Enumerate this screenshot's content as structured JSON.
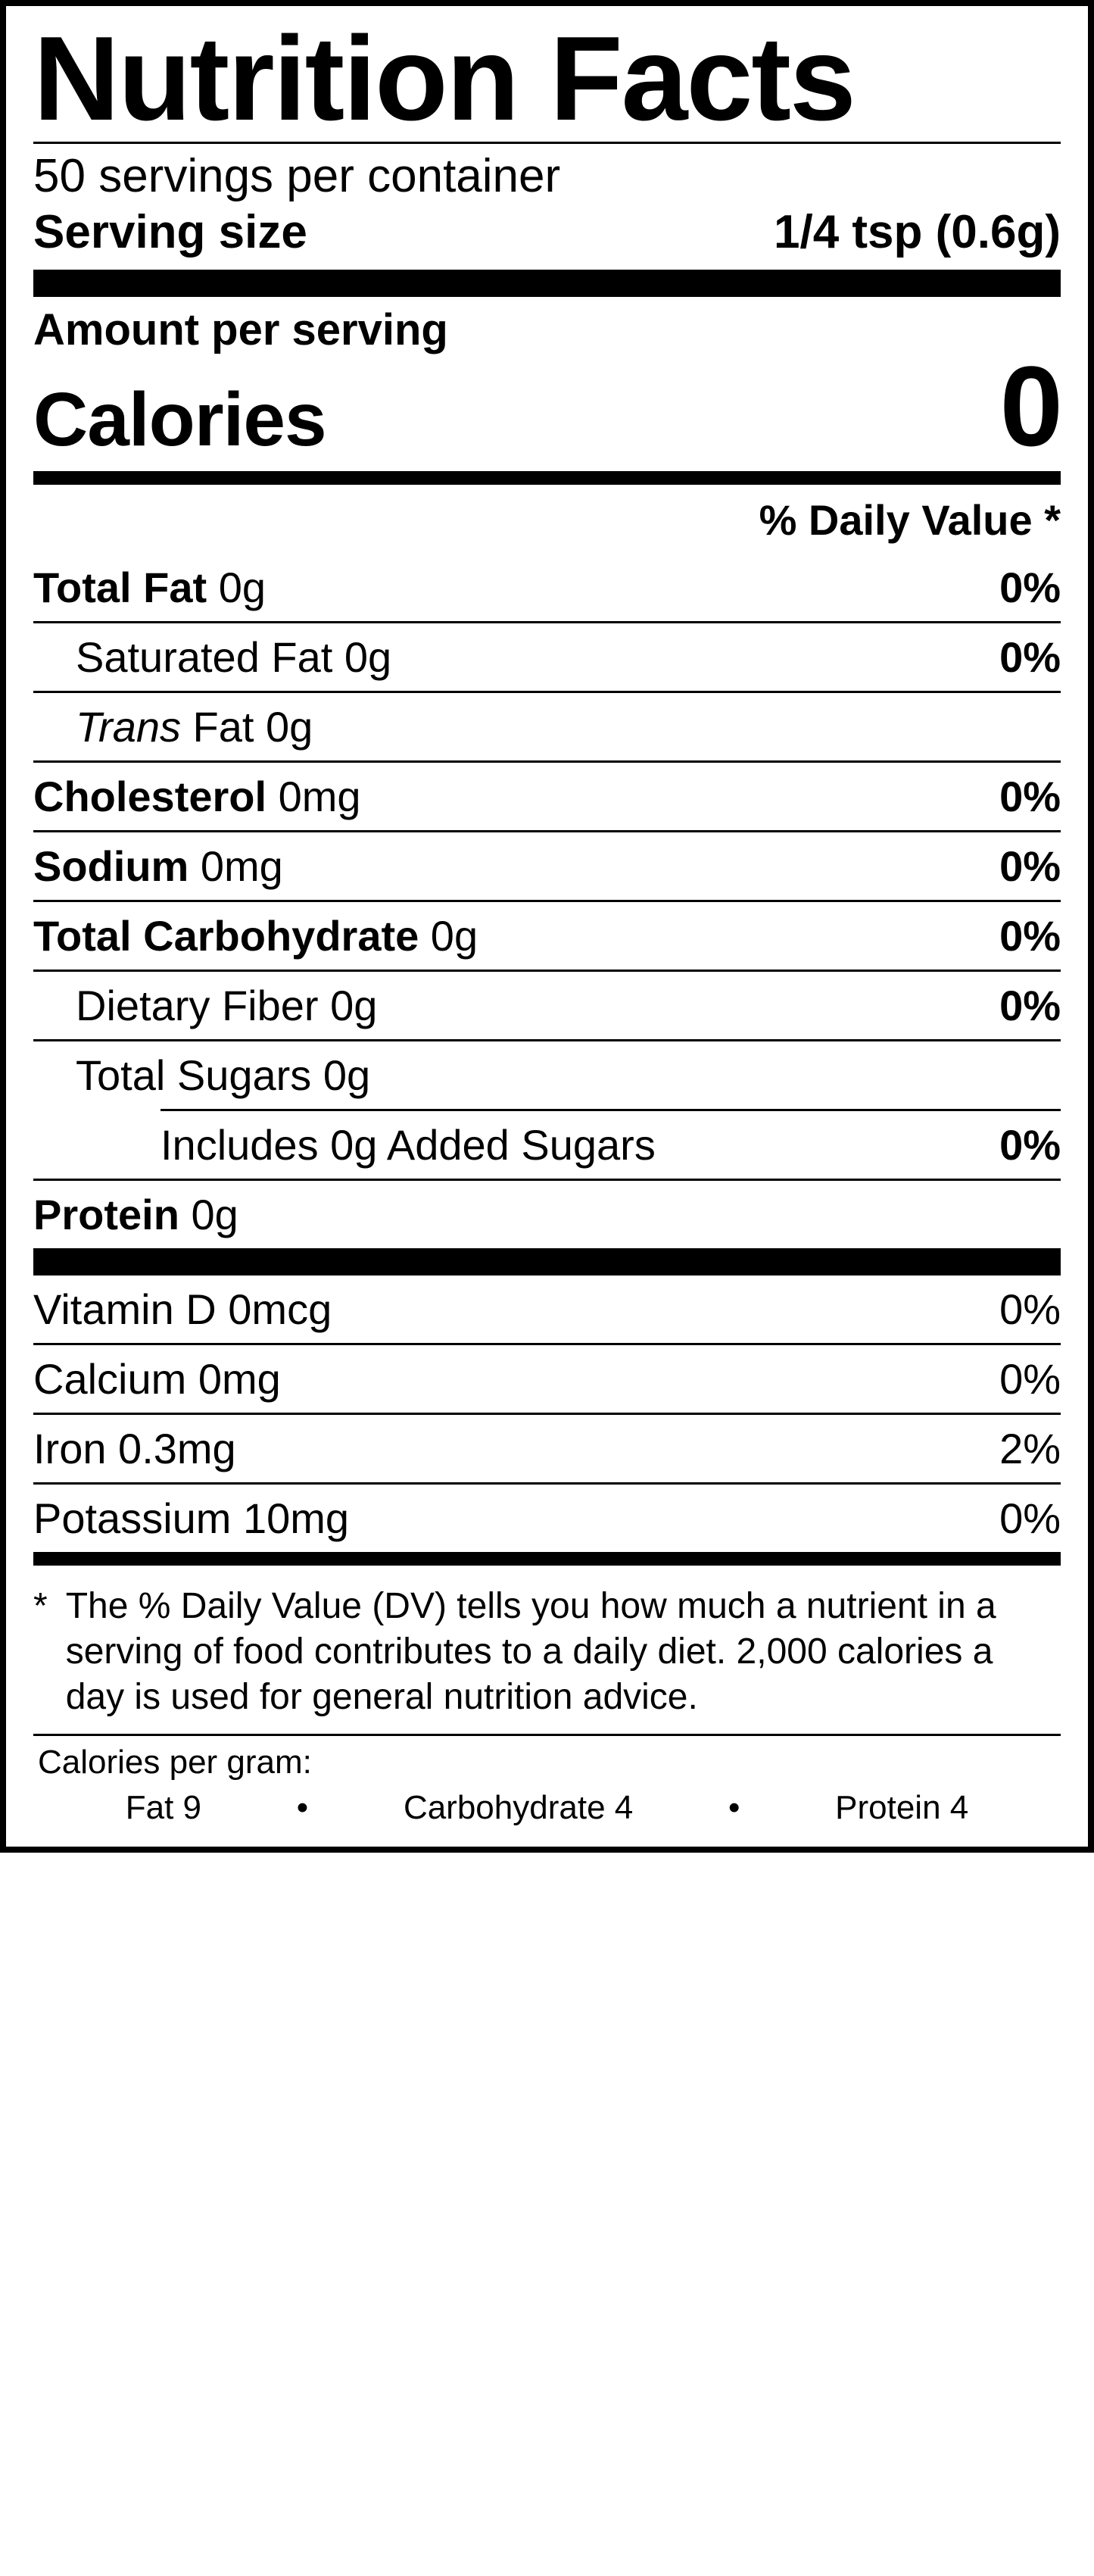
{
  "colors": {
    "fg": "#000000",
    "bg": "#ffffff"
  },
  "fonts": {
    "body_family": "Helvetica",
    "title_pt": 158,
    "body_pt": 56
  },
  "header": {
    "title": "Nutrition Facts",
    "servings_per_container": "50 servings per container",
    "serving_size_label": "Serving size",
    "serving_size_value": "1/4 tsp (0.6g)"
  },
  "amount_per_serving_label": "Amount per serving",
  "calories": {
    "label": "Calories",
    "value": "0"
  },
  "dv_header": "% Daily Value *",
  "nutrients_main": [
    {
      "bold": "Total Fat",
      "rest": " 0g",
      "dv": "0%",
      "indent": 0
    },
    {
      "bold": null,
      "rest": "Saturated Fat 0g",
      "dv": "0%",
      "indent": 1
    },
    {
      "italic": "Trans",
      "rest": " Fat 0g",
      "dv": "",
      "indent": 1
    },
    {
      "bold": "Cholesterol",
      "rest": " 0mg",
      "dv": "0%",
      "indent": 0
    },
    {
      "bold": "Sodium",
      "rest": " 0mg",
      "dv": "0%",
      "indent": 0
    },
    {
      "bold": "Total Carbohydrate",
      "rest": " 0g",
      "dv": "0%",
      "indent": 0
    },
    {
      "bold": null,
      "rest": "Dietary Fiber 0g",
      "dv": "0%",
      "indent": 1
    },
    {
      "bold": null,
      "rest": "Total Sugars 0g",
      "dv": "",
      "indent": 1
    },
    {
      "bold": null,
      "rest": "Includes 0g Added Sugars",
      "dv": "0%",
      "indent": 3,
      "partial_rule": true
    },
    {
      "bold": "Protein",
      "rest": " 0g",
      "dv": "",
      "indent": 0
    }
  ],
  "nutrients_vitamins": [
    {
      "label": "Vitamin D 0mcg",
      "dv": "0%"
    },
    {
      "label": "Calcium 0mg",
      "dv": "0%"
    },
    {
      "label": "Iron 0.3mg",
      "dv": "2%"
    },
    {
      "label": "Potassium 10mg",
      "dv": "0%"
    }
  ],
  "footnote": {
    "asterisk": "*",
    "text": "The % Daily Value (DV) tells you how much a nutrient in a serving of food contributes to a daily diet. 2,000 calories a day is used for general nutrition advice."
  },
  "calories_per_gram": {
    "label": "Calories per gram:",
    "items": [
      "Fat 9",
      "Carbohydrate 4",
      "Protein 4"
    ],
    "separator": "•"
  }
}
